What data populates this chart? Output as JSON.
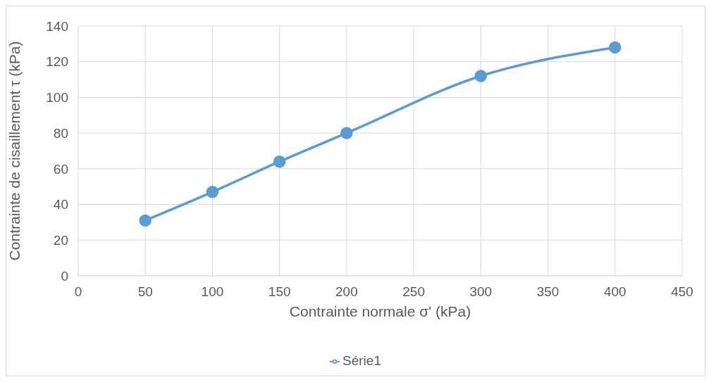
{
  "chart_data": {
    "type": "line",
    "xlabel": "Contrainte normale σ' (kPa)",
    "ylabel": "Contrainte de cisaillement τ (kPa)",
    "x": [
      50,
      100,
      150,
      200,
      300,
      400
    ],
    "series": [
      {
        "name": "Série1",
        "color": "#5b9bd5",
        "values": [
          31,
          47,
          64,
          80,
          112,
          128
        ]
      }
    ],
    "xlim": [
      0,
      450
    ],
    "xticks": [
      0,
      50,
      100,
      150,
      200,
      250,
      300,
      350,
      400,
      450
    ],
    "ylim": [
      0,
      140
    ],
    "yticks": [
      0,
      20,
      40,
      60,
      80,
      100,
      120,
      140
    ],
    "grid": true,
    "legend": "bottom",
    "marker": "circle",
    "line_style": "solid"
  }
}
